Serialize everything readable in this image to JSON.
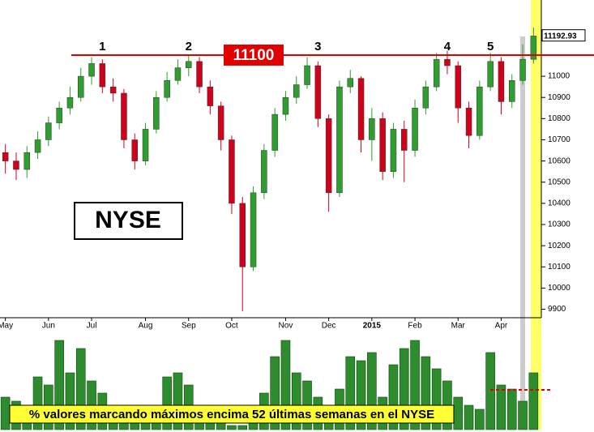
{
  "chart_data": [
    {
      "type": "candlestick",
      "title": "NYSE",
      "categories": [
        "May",
        null,
        null,
        null,
        "Jun",
        null,
        null,
        null,
        "Jul",
        null,
        null,
        null,
        null,
        "Aug",
        null,
        null,
        null,
        "Sep",
        null,
        null,
        null,
        "Oct",
        null,
        null,
        null,
        null,
        "Nov",
        null,
        null,
        null,
        "Dec",
        null,
        null,
        null,
        "2015",
        null,
        null,
        null,
        "Feb",
        null,
        null,
        null,
        "Mar",
        null,
        null,
        null,
        "Apr",
        null,
        null,
        null
      ],
      "ohlc": [
        [
          10640,
          10680,
          10540,
          10600
        ],
        [
          10600,
          10640,
          10510,
          10560
        ],
        [
          10560,
          10670,
          10520,
          10640
        ],
        [
          10640,
          10740,
          10610,
          10700
        ],
        [
          10700,
          10810,
          10670,
          10780
        ],
        [
          10780,
          10880,
          10750,
          10850
        ],
        [
          10850,
          10950,
          10820,
          10900
        ],
        [
          10900,
          11040,
          10880,
          11000
        ],
        [
          11000,
          11090,
          10960,
          11060
        ],
        [
          11060,
          11080,
          10920,
          10950
        ],
        [
          10950,
          10990,
          10880,
          10920
        ],
        [
          10920,
          10940,
          10660,
          10700
        ],
        [
          10700,
          10730,
          10560,
          10600
        ],
        [
          10600,
          10780,
          10580,
          10750
        ],
        [
          10750,
          10930,
          10730,
          10900
        ],
        [
          10900,
          11020,
          10880,
          10980
        ],
        [
          10980,
          11080,
          10960,
          11040
        ],
        [
          11040,
          11100,
          11000,
          11070
        ],
        [
          11070,
          11090,
          10920,
          10950
        ],
        [
          10950,
          10980,
          10820,
          10860
        ],
        [
          10860,
          10880,
          10650,
          10700
        ],
        [
          10700,
          10720,
          10350,
          10400
        ],
        [
          10400,
          10430,
          9890,
          10100
        ],
        [
          10100,
          10480,
          10080,
          10450
        ],
        [
          10450,
          10680,
          10420,
          10650
        ],
        [
          10650,
          10850,
          10620,
          10820
        ],
        [
          10820,
          10930,
          10790,
          10900
        ],
        [
          10900,
          11000,
          10870,
          10960
        ],
        [
          10960,
          11090,
          10940,
          11050
        ],
        [
          11050,
          11070,
          10760,
          10800
        ],
        [
          10800,
          10820,
          10360,
          10450
        ],
        [
          10450,
          10980,
          10430,
          10950
        ],
        [
          10950,
          11030,
          10920,
          10990
        ],
        [
          10990,
          11000,
          10640,
          10700
        ],
        [
          10700,
          10850,
          10600,
          10800
        ],
        [
          10800,
          10830,
          10510,
          10550
        ],
        [
          10550,
          10780,
          10520,
          10750
        ],
        [
          10750,
          10790,
          10500,
          10650
        ],
        [
          10650,
          10890,
          10620,
          10850
        ],
        [
          10850,
          10980,
          10820,
          10950
        ],
        [
          10950,
          11110,
          10930,
          11080
        ],
        [
          11080,
          11120,
          11010,
          11050
        ],
        [
          11050,
          11070,
          10780,
          10850
        ],
        [
          10850,
          10880,
          10660,
          10720
        ],
        [
          10720,
          10980,
          10700,
          10950
        ],
        [
          10950,
          11110,
          10930,
          11070
        ],
        [
          11070,
          11090,
          10820,
          10880
        ],
        [
          10880,
          11010,
          10850,
          10980
        ],
        [
          10980,
          11150,
          10960,
          11080
        ],
        [
          11080,
          11230,
          11060,
          11190
        ]
      ],
      "up_color": "#2e9e2e",
      "down_color": "#d0021b",
      "ylim": [
        9860,
        11360
      ],
      "yticks": [
        9900,
        10000,
        10100,
        10200,
        10300,
        10400,
        10500,
        10600,
        10700,
        10800,
        10900,
        11000
      ],
      "resistance": 11100,
      "resistance_color": "#e00000",
      "last_price": 11192.93,
      "annotations": [
        {
          "text": "1",
          "at": 9
        },
        {
          "text": "2",
          "at": 17
        },
        {
          "text": "3",
          "at": 29
        },
        {
          "text": "4",
          "at": 41
        },
        {
          "text": "5",
          "at": 45
        }
      ]
    },
    {
      "type": "bar",
      "title": "% valores marcando máximos encima 52 últimas semanas en el NYSE",
      "values": [
        40,
        35,
        30,
        65,
        55,
        110,
        70,
        100,
        60,
        45,
        30,
        20,
        15,
        10,
        25,
        65,
        70,
        55,
        30,
        15,
        10,
        5,
        5,
        10,
        45,
        90,
        110,
        70,
        60,
        40,
        20,
        50,
        90,
        85,
        95,
        40,
        80,
        100,
        110,
        90,
        75,
        60,
        40,
        30,
        25,
        95,
        55,
        50,
        35,
        70
      ],
      "color": "#2e8b2e",
      "ylim": [
        0,
        120
      ],
      "threshold": 49,
      "threshold_color": "#e00000"
    }
  ]
}
